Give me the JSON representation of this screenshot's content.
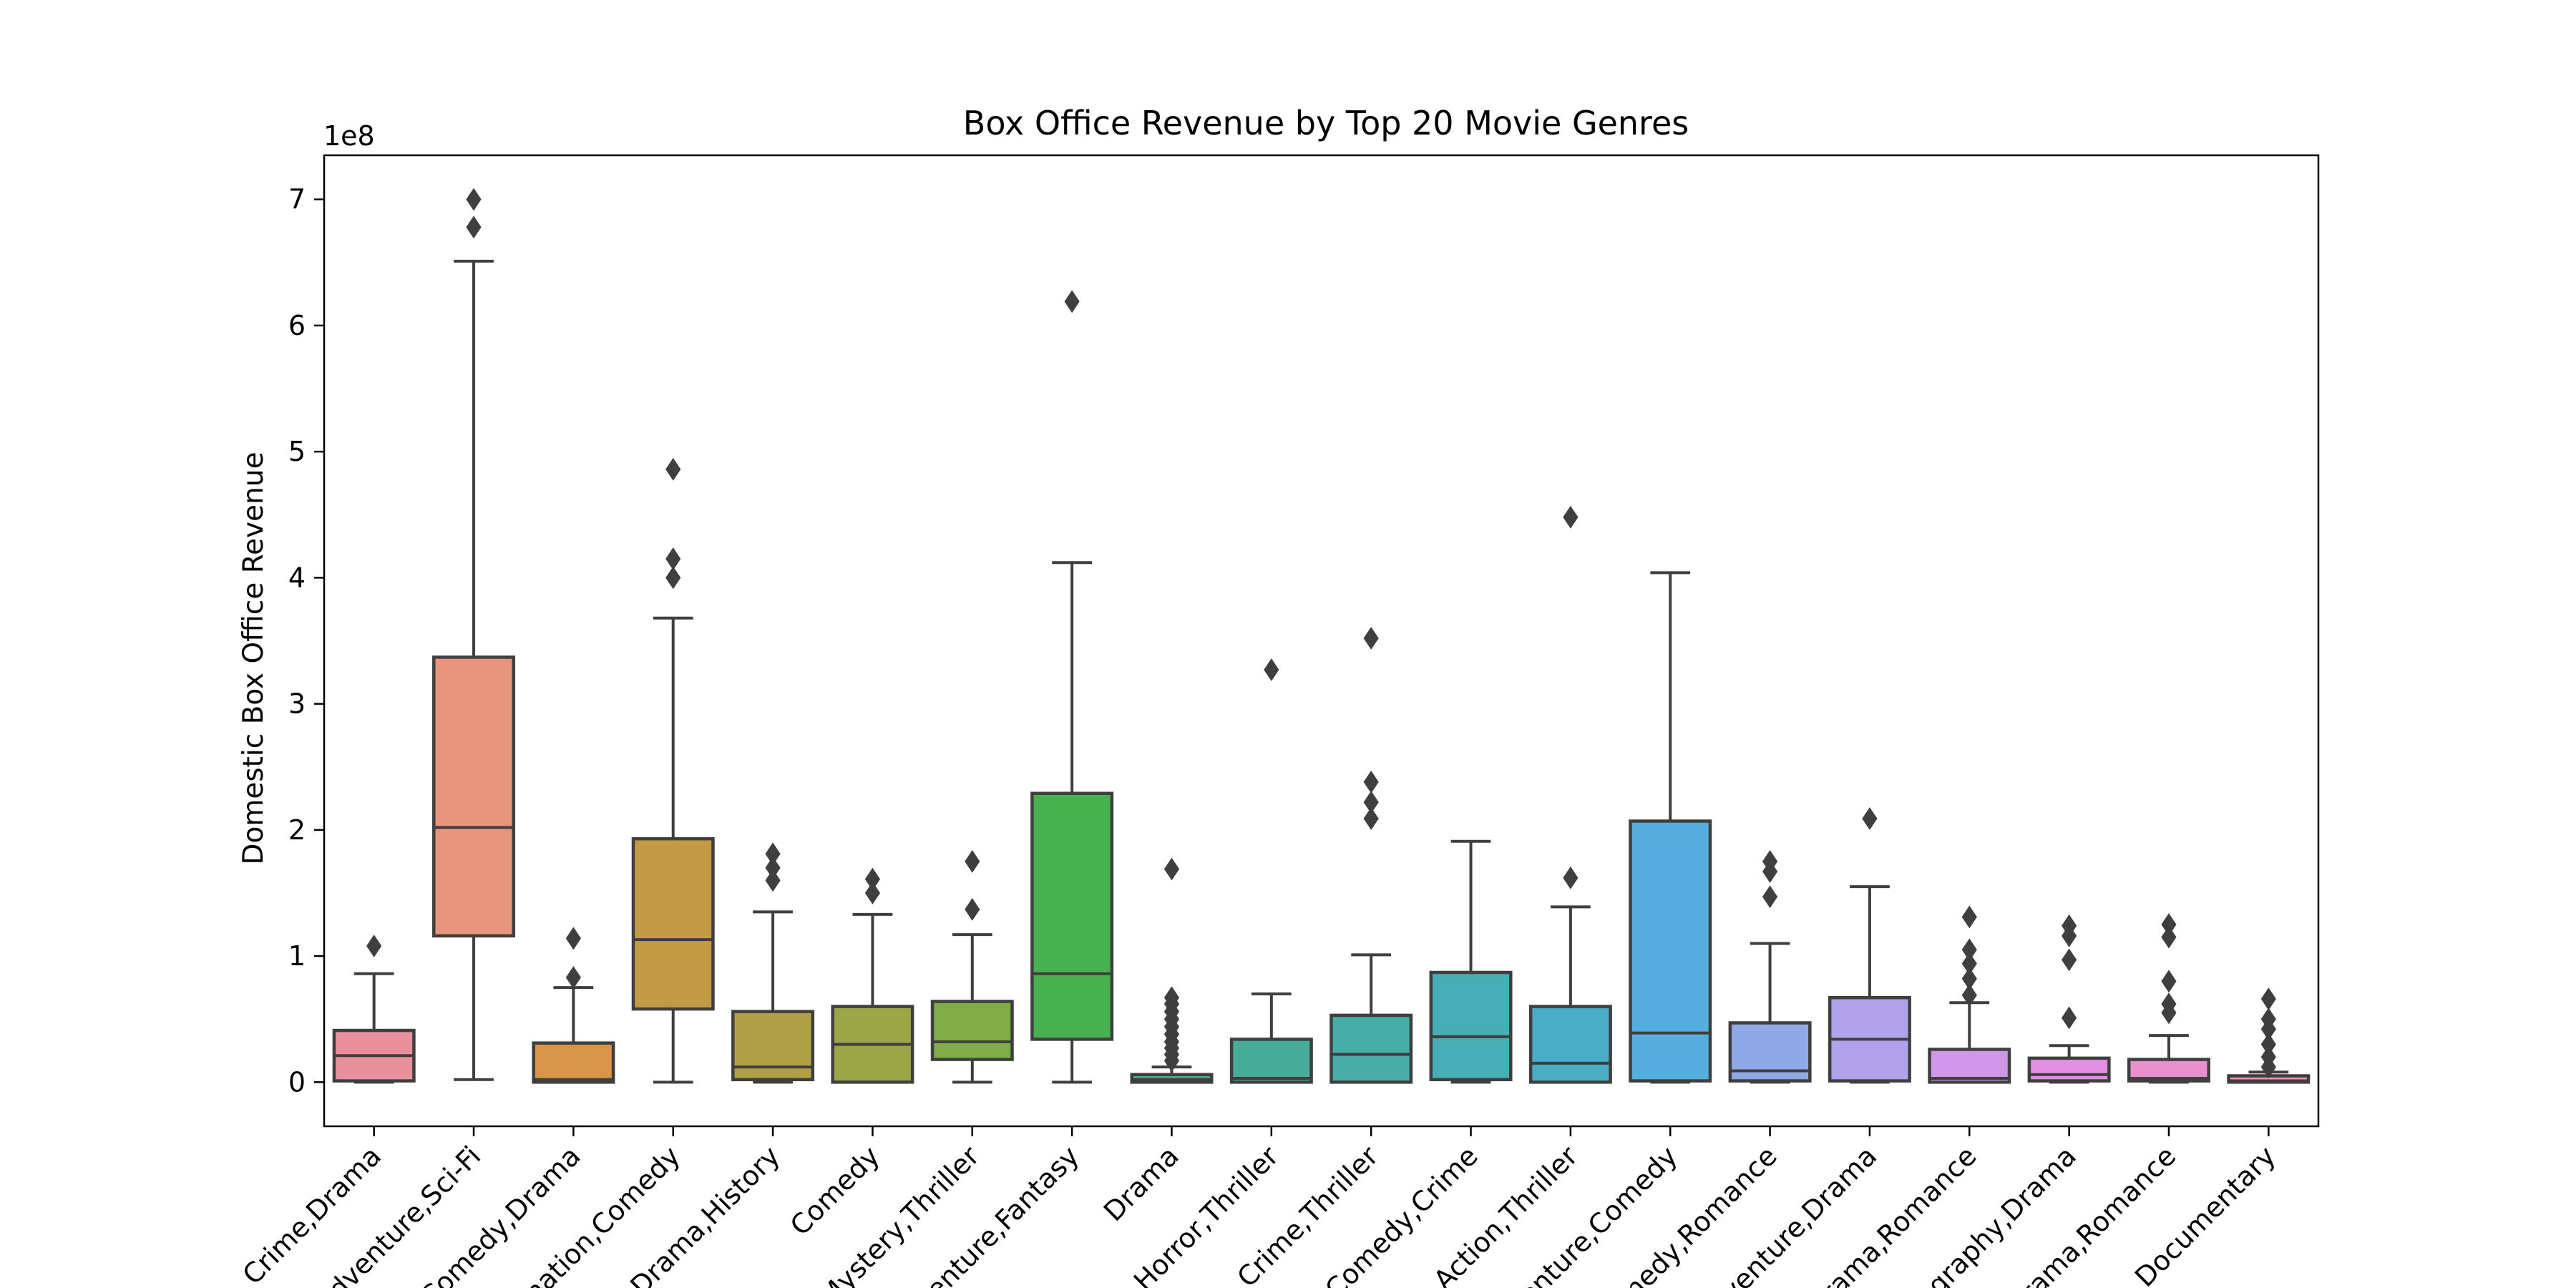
{
  "chart_data": {
    "type": "box",
    "title": "Box Office Revenue by Top 20 Movie Genres",
    "xlabel": "",
    "ylabel": "Domestic Box Office Revenue",
    "y_offset_label": "1e8",
    "ylim": [
      -35000000,
      735000000
    ],
    "y_ticks": [
      0,
      100000000,
      200000000,
      300000000,
      400000000,
      500000000,
      600000000,
      700000000
    ],
    "y_tick_labels": [
      "0",
      "1",
      "2",
      "3",
      "4",
      "5",
      "6",
      "7"
    ],
    "grid": false,
    "legend": "none",
    "categories": [
      {
        "label": "Crime,Drama",
        "color": "#e8919d",
        "min": 0,
        "q1": 1000000,
        "median": 21000000,
        "q3": 41000000,
        "max": 86000000,
        "outliers": [
          108000000
        ]
      },
      {
        "label": "Adventure,Sci-Fi",
        "color": "#e8957e",
        "min": 2000000,
        "q1": 116000000,
        "median": 202000000,
        "q3": 337000000,
        "max": 651000000,
        "outliers": [
          678000000,
          700000000
        ]
      },
      {
        "label": "Comedy,Drama",
        "color": "#d9954a",
        "min": 0,
        "q1": 0,
        "median": 2000000,
        "q3": 31000000,
        "max": 75000000,
        "outliers": [
          83000000,
          114000000
        ]
      },
      {
        "label": "Animation,Comedy",
        "color": "#c49a44",
        "min": 0,
        "q1": 58000000,
        "median": 113000000,
        "q3": 193000000,
        "max": 368000000,
        "outliers": [
          400000000,
          415000000,
          486000000
        ]
      },
      {
        "label": "Drama,History",
        "color": "#b0a146",
        "min": 0,
        "q1": 2000000,
        "median": 12000000,
        "q3": 56000000,
        "max": 135000000,
        "outliers": [
          160000000,
          170000000,
          181000000
        ]
      },
      {
        "label": "Comedy",
        "color": "#9ba646",
        "min": 0,
        "q1": 0,
        "median": 30000000,
        "q3": 60000000,
        "max": 133000000,
        "outliers": [
          150000000,
          161000000
        ]
      },
      {
        "label": "Mystery,Thriller",
        "color": "#80ad47",
        "min": 0,
        "q1": 18000000,
        "median": 32000000,
        "q3": 64000000,
        "max": 117000000,
        "outliers": [
          137000000,
          175000000
        ]
      },
      {
        "label": "Adventure,Fantasy",
        "color": "#47b04f",
        "min": 0,
        "q1": 34000000,
        "median": 86000000,
        "q3": 229000000,
        "max": 412000000,
        "outliers": [
          619000000
        ]
      },
      {
        "label": "Drama",
        "color": "#4aad88",
        "min": 0,
        "q1": 0,
        "median": 2000000,
        "q3": 6000000,
        "max": 12000000,
        "outliers": [
          17000000,
          22000000,
          27000000,
          32000000,
          38000000,
          44000000,
          50000000,
          56000000,
          62000000,
          67000000,
          169000000
        ]
      },
      {
        "label": "Horror,Thriller",
        "color": "#47ad98",
        "min": 0,
        "q1": 0,
        "median": 3000000,
        "q3": 34000000,
        "max": 70000000,
        "outliers": [
          327000000
        ]
      },
      {
        "label": "Crime,Thriller",
        "color": "#47ada6",
        "min": 0,
        "q1": 0,
        "median": 22000000,
        "q3": 53000000,
        "max": 101000000,
        "outliers": [
          209000000,
          222000000,
          238000000,
          352000000
        ]
      },
      {
        "label": "Comedy,Crime",
        "color": "#46aeb4",
        "min": 0,
        "q1": 2000000,
        "median": 36000000,
        "q3": 87000000,
        "max": 191000000,
        "outliers": []
      },
      {
        "label": "Action,Thriller",
        "color": "#4aadc6",
        "min": 0,
        "q1": 0,
        "median": 15000000,
        "q3": 60000000,
        "max": 139000000,
        "outliers": [
          162000000,
          448000000
        ]
      },
      {
        "label": "Adventure,Comedy",
        "color": "#56aedf",
        "min": 0,
        "q1": 1000000,
        "median": 39000000,
        "q3": 207000000,
        "max": 404000000,
        "outliers": []
      },
      {
        "label": "Comedy,Romance",
        "color": "#8fa8e6",
        "min": 0,
        "q1": 1000000,
        "median": 9000000,
        "q3": 47000000,
        "max": 110000000,
        "outliers": [
          147000000,
          167000000,
          175000000
        ]
      },
      {
        "label": "Adventure,Drama",
        "color": "#b0a2eb",
        "min": 0,
        "q1": 1000000,
        "median": 34000000,
        "q3": 67000000,
        "max": 155000000,
        "outliers": [
          209000000
        ]
      },
      {
        "label": "Drama,Romance",
        "color": "#cf97e8",
        "min": 0,
        "q1": 0,
        "median": 3000000,
        "q3": 26000000,
        "max": 63000000,
        "outliers": [
          69000000,
          82000000,
          94000000,
          105000000,
          131000000
        ]
      },
      {
        "label": "Biography,Drama",
        "color": "#e48ee1",
        "min": 0,
        "q1": 1000000,
        "median": 6000000,
        "q3": 19000000,
        "max": 29000000,
        "outliers": [
          51000000,
          97000000,
          116000000,
          124000000
        ]
      },
      {
        "label": "Drama,Romance",
        "color": "#ea8fcd",
        "min": 0,
        "q1": 1000000,
        "median": 3000000,
        "q3": 18000000,
        "max": 37000000,
        "outliers": [
          55000000,
          62000000,
          80000000,
          115000000,
          125000000
        ]
      },
      {
        "label": "Documentary",
        "color": "#ea93b6",
        "min": 0,
        "q1": 0,
        "median": 1000000,
        "q3": 5000000,
        "max": 8000000,
        "outliers": [
          12000000,
          20000000,
          30000000,
          42000000,
          50000000,
          66000000
        ]
      }
    ]
  }
}
